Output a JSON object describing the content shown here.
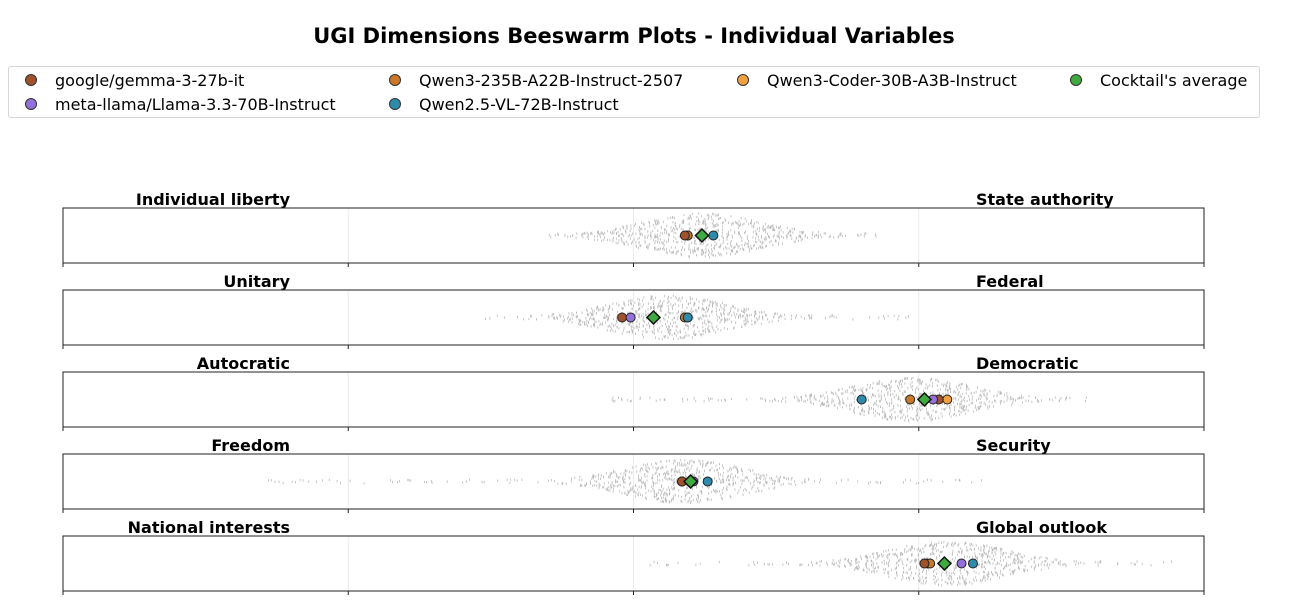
{
  "chart_data": {
    "type": "scatter",
    "title": "UGI Dimensions Beeswarm Plots - Individual Variables",
    "xlim": [
      -10,
      10
    ],
    "grid": true,
    "legend_position": "top",
    "legend": [
      {
        "name": "google/gemma-3-27b-it",
        "color": "#a0522d"
      },
      {
        "name": "Qwen3-235B-A22B-Instruct-2507",
        "color": "#c87a2a"
      },
      {
        "name": "Qwen3-Coder-30B-A3B-Instruct",
        "color": "#f0a040"
      },
      {
        "name": "Cocktail's average",
        "color": "#3faa3f"
      },
      {
        "name": "meta-llama/Llama-3.3-70B-Instruct",
        "color": "#9370db"
      },
      {
        "name": "Qwen2.5-VL-72B-Instruct",
        "color": "#2e8bab"
      }
    ],
    "panels": [
      {
        "left_label": "Individual liberty",
        "right_label": "State authority",
        "swarm_center": 1.2,
        "swarm_range": [
          -1.6,
          4.4
        ],
        "points": {
          "google/gemma-3-27b-it": 0.9,
          "Qwen3-235B-A22B-Instruct-2507": 0.95,
          "Qwen3-Coder-30B-A3B-Instruct": 0.95,
          "meta-llama/Llama-3.3-70B-Instruct": 1.2,
          "Qwen2.5-VL-72B-Instruct": 1.4,
          "Cocktail's average": 1.2
        }
      },
      {
        "left_label": "Unitary",
        "right_label": "Federal",
        "swarm_center": 0.6,
        "swarm_range": [
          -3.0,
          5.0
        ],
        "points": {
          "google/gemma-3-27b-it": -0.2,
          "Qwen3-235B-A22B-Instruct-2507": 0.9,
          "Qwen3-Coder-30B-A3B-Instruct": 0.95,
          "meta-llama/Llama-3.3-70B-Instruct": -0.05,
          "Qwen2.5-VL-72B-Instruct": 0.95,
          "Cocktail's average": 0.35
        }
      },
      {
        "left_label": "Autocratic",
        "right_label": "Democratic",
        "swarm_center": 4.9,
        "swarm_range": [
          -0.5,
          8.0
        ],
        "points": {
          "google/gemma-3-27b-it": 5.35,
          "Qwen3-235B-A22B-Instruct-2507": 4.85,
          "Qwen3-Coder-30B-A3B-Instruct": 5.5,
          "meta-llama/Llama-3.3-70B-Instruct": 5.25,
          "Qwen2.5-VL-72B-Instruct": 4.0,
          "Cocktail's average": 5.1
        }
      },
      {
        "left_label": "Freedom",
        "right_label": "Security",
        "swarm_center": 0.9,
        "swarm_range": [
          -6.5,
          6.2
        ],
        "points": {
          "google/gemma-3-27b-it": 0.85,
          "Qwen3-235B-A22B-Instruct-2507": 0.85,
          "Qwen3-Coder-30B-A3B-Instruct": 0.85,
          "meta-llama/Llama-3.3-70B-Instruct": 1.05,
          "Qwen2.5-VL-72B-Instruct": 1.3,
          "Cocktail's average": 1.0
        }
      },
      {
        "left_label": "National interests",
        "right_label": "Global outlook",
        "swarm_center": 5.5,
        "swarm_range": [
          0.1,
          9.5
        ],
        "points": {
          "google/gemma-3-27b-it": 5.1,
          "Qwen3-235B-A22B-Instruct-2507": 5.2,
          "Qwen3-Coder-30B-A3B-Instruct": 5.15,
          "meta-llama/Llama-3.3-70B-Instruct": 5.75,
          "Qwen2.5-VL-72B-Instruct": 5.95,
          "Cocktail's average": 5.45
        }
      }
    ]
  }
}
